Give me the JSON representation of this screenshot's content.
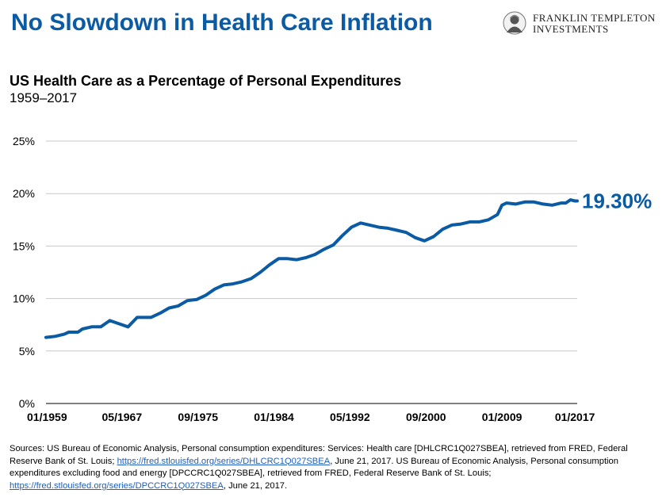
{
  "headline": "No Slowdown in Health Care Inflation",
  "logo": {
    "line1": "FRANKLIN TEMPLETON",
    "line2": "INVESTMENTS"
  },
  "colors": {
    "brand": "#0a5aa4",
    "line": "#0a5aa4",
    "grid": "#c8c8c8"
  },
  "sources": {
    "text1": "Sources: US Bureau of Economic Analysis, Personal consumption expenditures: Services: Health care [DHLCRC1Q027SBEA], retrieved from FRED, Federal Reserve Bank of St. Louis; ",
    "link1": "https://fred.stlouisfed.org/series/DHLCRC1Q027SBEA",
    "text2": ", June 21, 2017. US Bureau of Economic Analysis, Personal consumption expenditures excluding food and energy [DPCCRC1Q027SBEA], retrieved from FRED, Federal Reserve Bank of St. Louis; ",
    "link2": "https://fred.stlouisfed.org/series/DPCCRC1Q027SBEA",
    "text3": ", June 21, 2017."
  },
  "chart_data": {
    "type": "line",
    "title": "US Health Care as a Percentage of Personal Expenditures",
    "subtitle": "1959–2017",
    "xlabel": "",
    "ylabel": "",
    "ylim": [
      0,
      25
    ],
    "yticks": [
      0,
      5,
      10,
      15,
      20,
      25
    ],
    "ytick_labels": [
      "0%",
      "5%",
      "10%",
      "15%",
      "20%",
      "25%"
    ],
    "xlim": [
      1959.0,
      2017.25
    ],
    "xticks": [
      1959.0,
      1967.33,
      1975.67,
      1984.0,
      1992.33,
      2000.67,
      2009.0,
      2017.0
    ],
    "xtick_labels": [
      "01/1959",
      "05/1967",
      "09/1975",
      "01/1984",
      "05/1992",
      "09/2000",
      "01/2009",
      "01/2017"
    ],
    "grid": "horizontal",
    "legend": "none",
    "end_label": "19.30%",
    "series": [
      {
        "x": [
          1959.0,
          1960.0,
          1961.0,
          1961.5,
          1962.5,
          1963.0,
          1964.0,
          1965.0,
          1966.0,
          1967.0,
          1968.0,
          1969.0,
          1970.5,
          1971.5,
          1972.5,
          1973.5,
          1974.5,
          1975.5,
          1976.5,
          1977.5,
          1978.5,
          1979.5,
          1980.5,
          1981.5,
          1982.5,
          1983.5,
          1984.5,
          1985.5,
          1986.5,
          1987.5,
          1988.5,
          1989.5,
          1990.5,
          1991.5,
          1992.5,
          1993.5,
          1994.5,
          1995.5,
          1996.5,
          1997.5,
          1998.5,
          1999.5,
          2000.5,
          2001.5,
          2002.5,
          2003.5,
          2004.5,
          2005.5,
          2006.5,
          2007.5,
          2008.5,
          2009.0,
          2009.5,
          2010.5,
          2011.5,
          2012.5,
          2013.5,
          2014.5,
          2015.5,
          2016.0,
          2016.5,
          2017.0,
          2017.25
        ],
        "values": [
          6.3,
          6.4,
          6.6,
          6.8,
          6.8,
          7.1,
          7.3,
          7.3,
          7.9,
          7.6,
          7.3,
          8.2,
          8.2,
          8.6,
          9.1,
          9.3,
          9.8,
          9.9,
          10.3,
          10.9,
          11.3,
          11.4,
          11.6,
          11.9,
          12.5,
          13.2,
          13.8,
          13.8,
          13.7,
          13.9,
          14.2,
          14.7,
          15.1,
          16.0,
          16.8,
          17.2,
          17.0,
          16.8,
          16.7,
          16.5,
          16.3,
          15.8,
          15.5,
          15.9,
          16.6,
          17.0,
          17.1,
          17.3,
          17.3,
          17.5,
          18.0,
          18.9,
          19.1,
          19.0,
          19.2,
          19.2,
          19.0,
          18.9,
          19.1,
          19.1,
          19.4,
          19.3,
          19.3
        ]
      }
    ]
  }
}
